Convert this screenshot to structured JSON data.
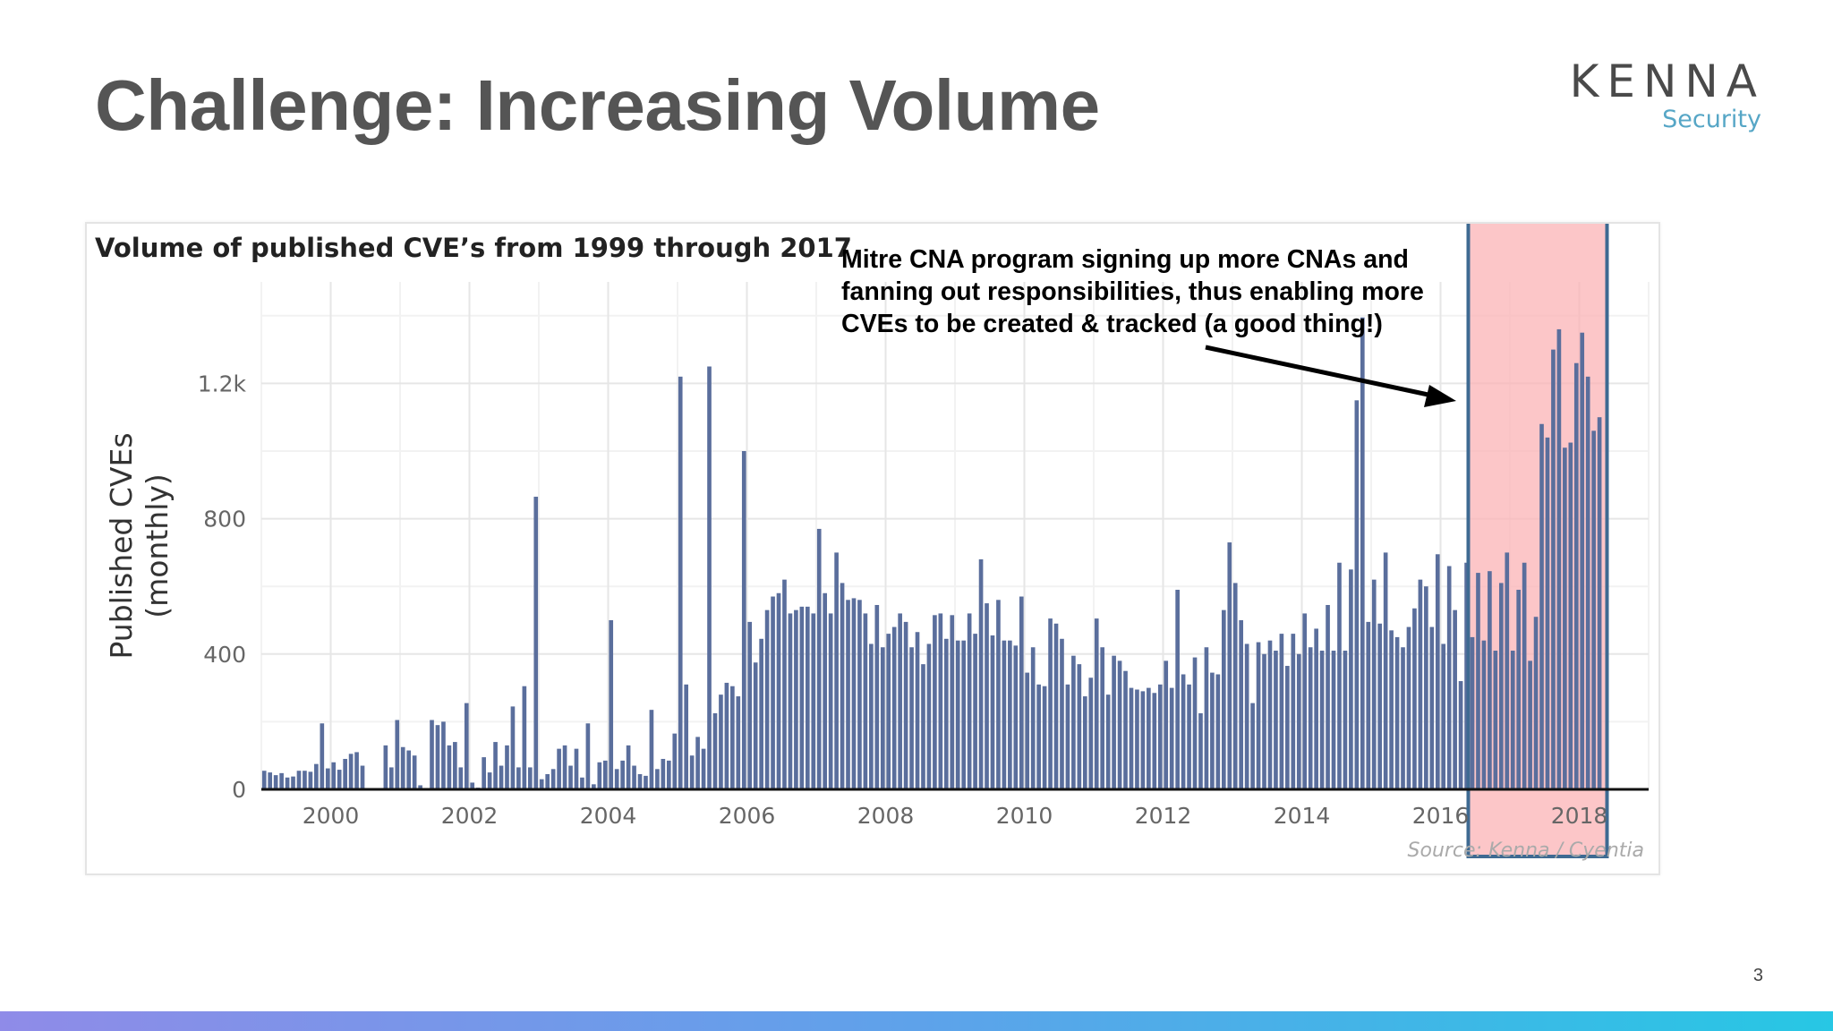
{
  "slide": {
    "title": "Challenge: Increasing Volume",
    "page_number": "3",
    "logo": {
      "name": "KENNA",
      "subtitle": "Security"
    },
    "annotation": "Mitre CNA program signing up more CNAs and fanning out responsibilities, thus enabling more CVEs to be created & tracked (a good thing!)"
  },
  "colors": {
    "bar": "#5a6e9c",
    "highlight_fill": "#fbb3b5",
    "highlight_border": "#3e6a92",
    "title": "#555555"
  },
  "chart_data": {
    "type": "bar",
    "title": "Volume of published CVE’s from 1999 through 2017",
    "xlabel": "",
    "ylabel": "Published CVEs\n(monthly)",
    "source": "Source: Kenna / Cyentia",
    "xlim": [
      1999,
      2019
    ],
    "ylim": [
      0,
      1500
    ],
    "xticks": [
      2000,
      2002,
      2004,
      2006,
      2008,
      2010,
      2012,
      2014,
      2016,
      2018
    ],
    "yticks": [
      {
        "value": 0,
        "label": "0"
      },
      {
        "value": 400,
        "label": "400"
      },
      {
        "value": 800,
        "label": "800"
      },
      {
        "value": 1200,
        "label": "1.2k"
      }
    ],
    "start_year": 1999,
    "series": [
      {
        "name": "Published CVEs (monthly)",
        "values": [
          55,
          50,
          42,
          48,
          35,
          38,
          55,
          55,
          52,
          75,
          195,
          62,
          80,
          58,
          90,
          105,
          110,
          70,
          0,
          0,
          0,
          130,
          65,
          205,
          125,
          115,
          100,
          12,
          0,
          205,
          190,
          200,
          130,
          140,
          65,
          255,
          20,
          5,
          95,
          50,
          140,
          70,
          130,
          245,
          65,
          305,
          65,
          865,
          30,
          45,
          60,
          120,
          130,
          70,
          120,
          35,
          195,
          15,
          80,
          85,
          500,
          60,
          85,
          130,
          70,
          45,
          40,
          235,
          60,
          90,
          85,
          165,
          1220,
          310,
          100,
          155,
          120,
          1250,
          225,
          280,
          315,
          305,
          275,
          1000,
          495,
          375,
          445,
          530,
          570,
          580,
          620,
          520,
          530,
          540,
          540,
          520,
          770,
          580,
          520,
          700,
          610,
          560,
          565,
          560,
          520,
          430,
          545,
          420,
          460,
          480,
          520,
          495,
          420,
          465,
          370,
          430,
          515,
          520,
          445,
          515,
          440,
          440,
          520,
          460,
          680,
          550,
          455,
          560,
          440,
          440,
          425,
          570,
          345,
          420,
          310,
          305,
          505,
          490,
          445,
          310,
          395,
          370,
          275,
          330,
          505,
          420,
          280,
          395,
          380,
          350,
          300,
          295,
          290,
          300,
          285,
          310,
          380,
          300,
          590,
          340,
          310,
          390,
          225,
          420,
          345,
          340,
          530,
          730,
          610,
          500,
          430,
          255,
          435,
          400,
          440,
          410,
          460,
          365,
          460,
          400,
          520,
          420,
          475,
          410,
          545,
          410,
          670,
          410,
          650,
          1150,
          1395,
          495,
          620,
          490,
          700,
          470,
          450,
          420,
          480,
          535,
          620,
          600,
          480,
          695,
          430,
          660,
          530,
          320,
          670,
          450,
          640,
          440,
          645,
          410,
          610,
          700,
          410,
          590,
          670,
          380,
          510,
          1080,
          1040,
          1300,
          1360,
          1010,
          1025,
          1260,
          1350,
          1220,
          1060,
          1100
        ]
      }
    ]
  }
}
